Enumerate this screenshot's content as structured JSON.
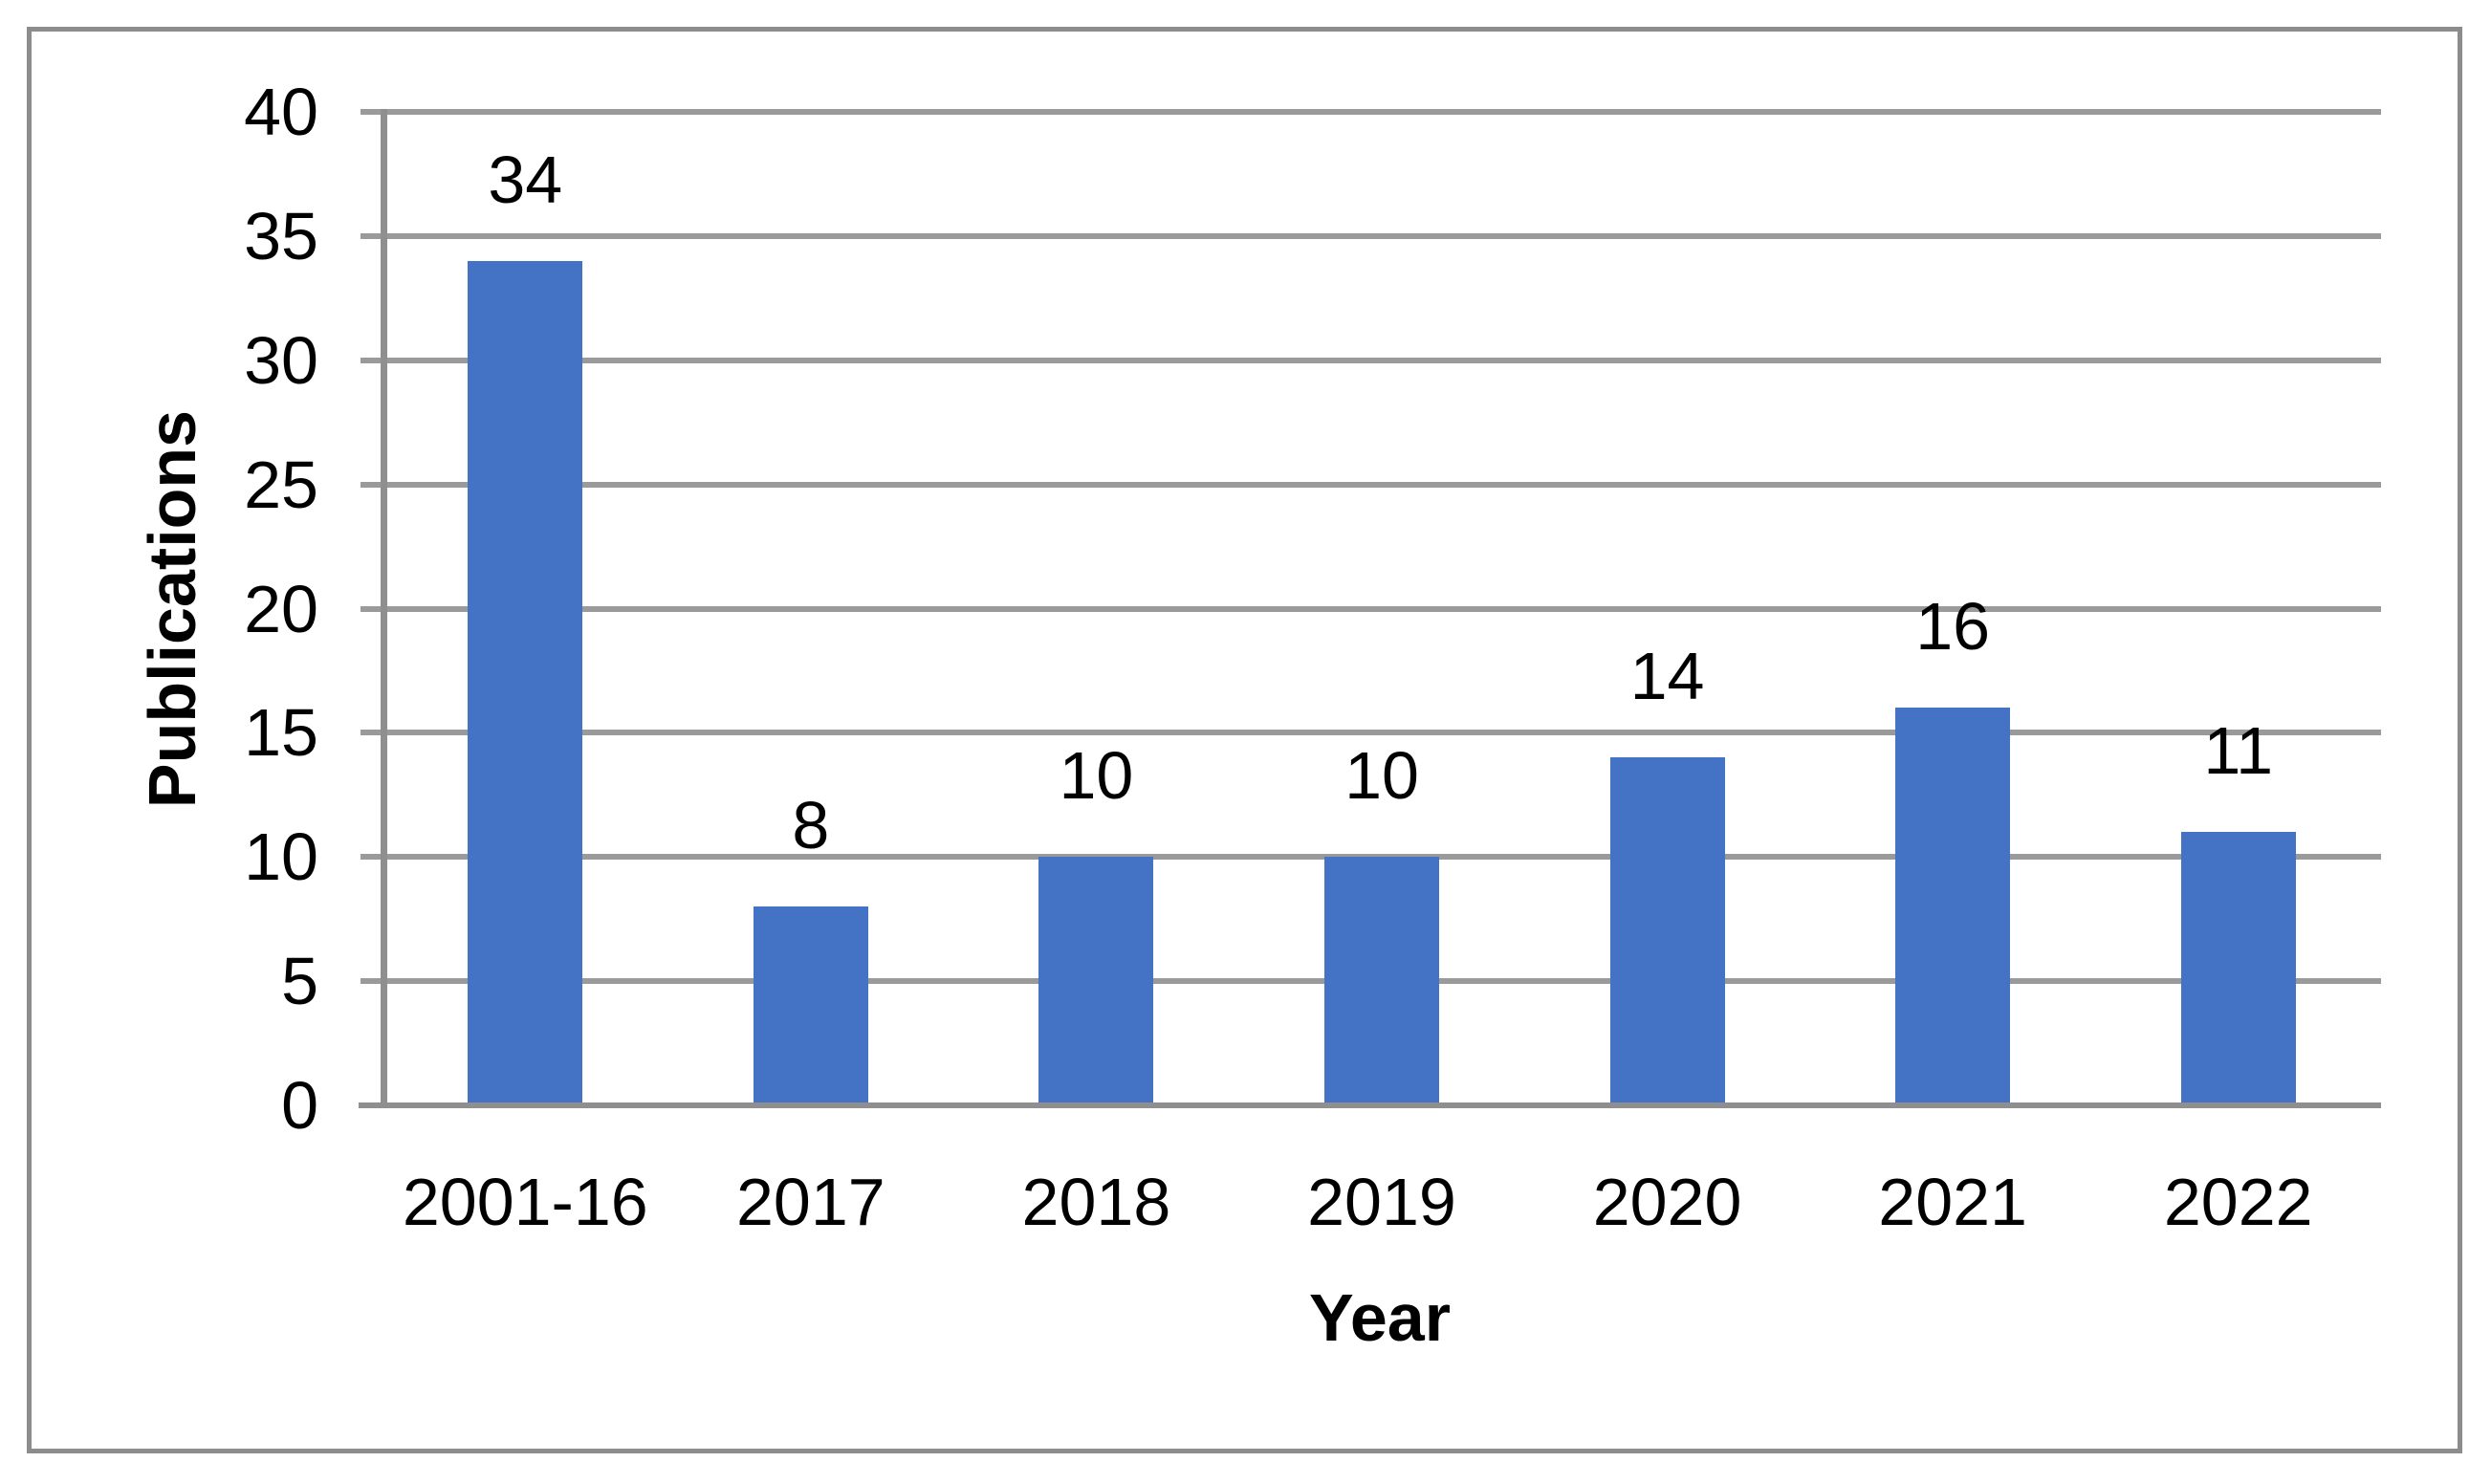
{
  "chart_data": {
    "type": "bar",
    "title": "",
    "categories": [
      "2001-16",
      "2017",
      "2018",
      "2019",
      "2020",
      "2021",
      "2022"
    ],
    "values": [
      34,
      8,
      10,
      10,
      14,
      16,
      11
    ],
    "xlabel": "Year",
    "ylabel": "Publications",
    "ylim": [
      0,
      40
    ],
    "yticks": [
      0,
      5,
      10,
      15,
      20,
      25,
      30,
      35,
      40
    ],
    "grid": "horizontal",
    "legend": "none",
    "colors": {
      "bar": "#4472C4",
      "gridline": "#9a9a9a",
      "axis": "#8f8f8f",
      "frame": "#8c8c8c",
      "text": "#000000",
      "background": "#ffffff"
    }
  }
}
